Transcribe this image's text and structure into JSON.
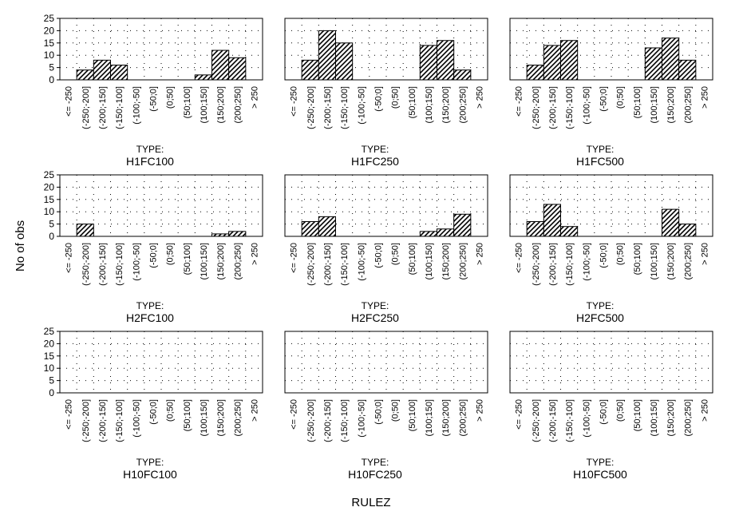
{
  "ylabel": "No of obs",
  "xlabel": "RULEZ",
  "type_prefix": "TYPE:",
  "colors": {
    "bar_fill": "#ffffff",
    "hatch": "#000000",
    "grid": "#000000"
  },
  "chart_data": {
    "type": "bar",
    "layout": "3x3 small multiples, shared axes",
    "hatch": "diagonal",
    "grid": true,
    "ylim": [
      0,
      25
    ],
    "yticks": [
      0,
      5,
      10,
      15,
      20,
      25
    ],
    "categories": [
      "<= -250",
      "(-250;-200]",
      "(-200;-150]",
      "(-150;-100]",
      "(-100;-50]",
      "(-50;0]",
      "(0;50]",
      "(50;100]",
      "(100;150]",
      "(150;200]",
      "(200;250]",
      "> 250"
    ],
    "panels": [
      {
        "name": "H1FC100",
        "values": [
          0,
          4,
          8,
          6,
          0,
          0,
          0,
          0,
          2,
          12,
          9,
          0
        ]
      },
      {
        "name": "H1FC250",
        "values": [
          0,
          8,
          20,
          15,
          0,
          0,
          0,
          0,
          14,
          16,
          4,
          0
        ]
      },
      {
        "name": "H1FC500",
        "values": [
          0,
          6,
          14,
          16,
          0,
          0,
          0,
          0,
          13,
          17,
          8,
          0
        ]
      },
      {
        "name": "H2FC100",
        "values": [
          0,
          5,
          0,
          0,
          0,
          0,
          0,
          0,
          0,
          1,
          2,
          0
        ]
      },
      {
        "name": "H2FC250",
        "values": [
          0,
          6,
          8,
          0,
          0,
          0,
          0,
          0,
          2,
          3,
          9,
          0
        ]
      },
      {
        "name": "H2FC500",
        "values": [
          0,
          6,
          13,
          4,
          0,
          0,
          0,
          0,
          0,
          11,
          5,
          0
        ]
      },
      {
        "name": "H10FC100",
        "values": [
          0,
          0,
          0,
          0,
          0,
          0,
          0,
          0,
          0,
          0,
          0,
          0
        ]
      },
      {
        "name": "H10FC250",
        "values": [
          0,
          0,
          0,
          0,
          0,
          0,
          0,
          0,
          0,
          0,
          0,
          0
        ]
      },
      {
        "name": "H10FC500",
        "values": [
          0,
          0,
          0,
          0,
          0,
          0,
          0,
          0,
          0,
          0,
          0,
          0
        ]
      }
    ]
  }
}
